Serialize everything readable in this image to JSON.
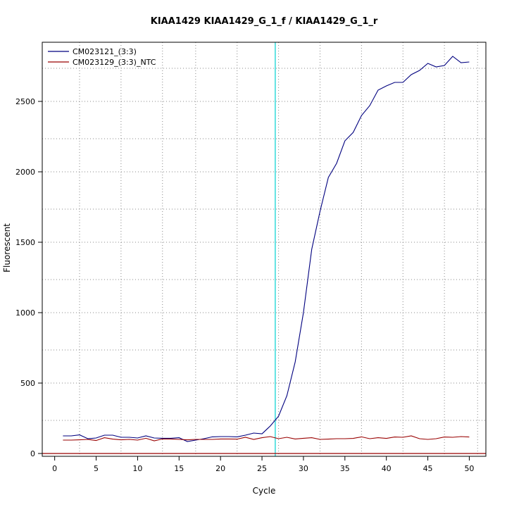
{
  "chart_data": {
    "type": "line",
    "title": "KIAA1429  KIAA1429_G_1_f / KIAA1429_G_1_r",
    "xlabel": "Cycle",
    "ylabel": "Fluorescent",
    "xlim": [
      -1.5,
      52
    ],
    "ylim": [
      -20,
      2920
    ],
    "xticks": [
      0,
      5,
      10,
      15,
      20,
      25,
      30,
      35,
      40,
      45,
      50
    ],
    "yticks": [
      0,
      500,
      1000,
      1500,
      2000,
      2500
    ],
    "x_grid": [
      3,
      8,
      13,
      17,
      22,
      27,
      32,
      37,
      42,
      47,
      51
    ],
    "y_grid": [
      0,
      235,
      500,
      735,
      1000,
      1235,
      1500,
      1735,
      2000,
      2235,
      2500,
      2735
    ],
    "threshold_cycle": 26.6,
    "baseline": 0,
    "grid": true,
    "legend_position": "top-left",
    "colors": {
      "series1": "#00007f",
      "series2": "#990000",
      "threshold": "#00d0d0",
      "baseline": "#990000"
    },
    "x": [
      1,
      2,
      3,
      4,
      5,
      6,
      7,
      8,
      9,
      10,
      11,
      12,
      13,
      14,
      15,
      16,
      17,
      18,
      19,
      20,
      21,
      22,
      23,
      24,
      25,
      26,
      27,
      28,
      29,
      30,
      31,
      32,
      33,
      34,
      35,
      36,
      37,
      38,
      39,
      40,
      41,
      42,
      43,
      44,
      45,
      46,
      47,
      48,
      49,
      50
    ],
    "series": [
      {
        "name": "CM023121_(3:3)",
        "color": "#00007f",
        "values": [
          125,
          125,
          132,
          105,
          110,
          130,
          130,
          115,
          115,
          110,
          125,
          110,
          108,
          108,
          112,
          85,
          95,
          105,
          118,
          120,
          120,
          118,
          130,
          145,
          140,
          195,
          265,
          410,
          650,
          1000,
          1450,
          1720,
          1960,
          2060,
          2220,
          2280,
          2400,
          2470,
          2580,
          2610,
          2635,
          2635,
          2690,
          2720,
          2770,
          2745,
          2755,
          2820,
          2775,
          2780
        ]
      },
      {
        "name": "CM023129_(3:3)_NTC",
        "color": "#990000",
        "values": [
          95,
          95,
          97,
          100,
          92,
          112,
          102,
          97,
          100,
          95,
          108,
          90,
          103,
          103,
          100,
          97,
          100,
          100,
          100,
          103,
          103,
          102,
          115,
          100,
          112,
          120,
          105,
          115,
          103,
          108,
          112,
          100,
          102,
          105,
          105,
          107,
          118,
          105,
          112,
          107,
          117,
          115,
          125,
          105,
          100,
          105,
          117,
          115,
          120,
          117
        ]
      }
    ]
  }
}
